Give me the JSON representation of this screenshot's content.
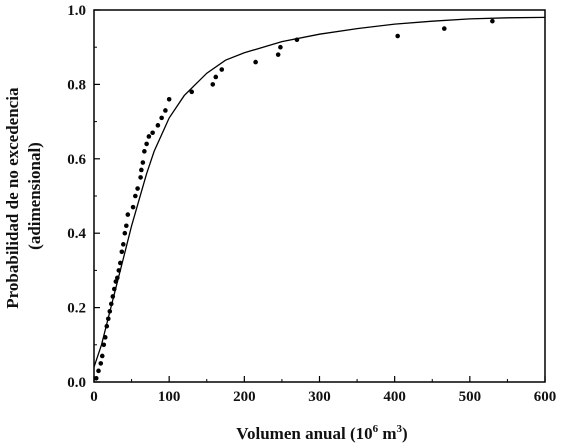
{
  "chart_data": {
    "type": "scatter",
    "title": "",
    "xlabel": "Volumen anual (10⁶ m³)",
    "xlabel_parts": {
      "main": "Volumen anual (10",
      "exp1": "6",
      "mid": " m",
      "exp2": "3",
      "end": ")"
    },
    "ylabel_lines": [
      "Probabilidad de no excedencia",
      "(adimensional)"
    ],
    "xlim": [
      0,
      600
    ],
    "ylim": [
      0.0,
      1.0
    ],
    "xticks": [
      0,
      100,
      200,
      300,
      400,
      500,
      600
    ],
    "xtick_labels": [
      "0",
      "100",
      "200",
      "300",
      "400",
      "500",
      "600"
    ],
    "yticks": [
      0.0,
      0.2,
      0.4,
      0.6,
      0.8,
      1.0
    ],
    "ytick_labels": [
      "0.0",
      "0.2",
      "0.4",
      "0.6",
      "0.8",
      "1.0"
    ],
    "grid": false,
    "colors": {
      "points": "#000000",
      "curve": "#000000",
      "axes": "#000000"
    },
    "series": [
      {
        "kind": "points",
        "x": [
          3,
          6,
          9,
          11,
          13,
          15,
          17,
          19,
          21,
          23,
          25,
          27,
          29,
          31,
          33,
          35,
          37,
          39,
          41,
          43,
          45,
          52,
          55,
          58,
          62,
          63,
          65,
          67,
          70,
          73,
          78,
          85,
          90,
          95,
          100,
          130,
          158,
          162,
          170,
          215,
          245,
          248,
          270,
          404,
          466,
          530
        ],
        "y": [
          0.01,
          0.03,
          0.05,
          0.07,
          0.1,
          0.12,
          0.15,
          0.17,
          0.19,
          0.21,
          0.23,
          0.25,
          0.27,
          0.28,
          0.3,
          0.32,
          0.35,
          0.37,
          0.4,
          0.42,
          0.45,
          0.47,
          0.5,
          0.52,
          0.55,
          0.57,
          0.59,
          0.62,
          0.64,
          0.66,
          0.67,
          0.69,
          0.71,
          0.73,
          0.76,
          0.78,
          0.8,
          0.82,
          0.84,
          0.86,
          0.88,
          0.9,
          0.92,
          0.93,
          0.95,
          0.97
        ]
      },
      {
        "kind": "curve",
        "x": [
          0,
          10,
          20,
          30,
          40,
          50,
          60,
          70,
          80,
          100,
          120,
          150,
          175,
          200,
          250,
          300,
          350,
          400,
          450,
          500,
          550,
          600
        ],
        "y": [
          0.04,
          0.1,
          0.18,
          0.26,
          0.34,
          0.42,
          0.49,
          0.56,
          0.62,
          0.71,
          0.77,
          0.83,
          0.865,
          0.885,
          0.915,
          0.935,
          0.95,
          0.962,
          0.97,
          0.976,
          0.979,
          0.98
        ]
      }
    ]
  }
}
